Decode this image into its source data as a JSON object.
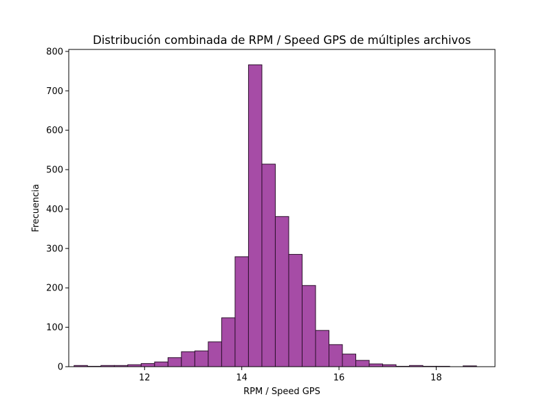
{
  "chart_data": {
    "type": "bar",
    "title": "Distribución combinada de RPM / Speed GPS de múltiples archivos",
    "xlabel": "RPM / Speed GPS",
    "ylabel": "Frecuencia",
    "xlim": [
      10.44,
      19.21
    ],
    "ylim": [
      0,
      805
    ],
    "xticks": [
      12,
      14,
      16,
      18
    ],
    "yticks": [
      0,
      100,
      200,
      300,
      400,
      500,
      600,
      700,
      800
    ],
    "bin_edges": [
      10.55,
      10.826,
      11.102,
      11.378,
      11.654,
      11.93,
      12.206,
      12.482,
      12.758,
      13.034,
      13.31,
      13.586,
      13.862,
      14.138,
      14.414,
      14.69,
      14.966,
      15.242,
      15.518,
      15.794,
      16.07,
      16.346,
      16.622,
      16.898,
      17.174,
      17.45,
      17.726,
      18.002,
      18.278,
      18.554,
      18.83
    ],
    "counts": [
      3,
      1,
      3,
      3,
      5,
      8,
      12,
      23,
      38,
      40,
      63,
      124,
      279,
      766,
      514,
      381,
      285,
      206,
      92,
      56,
      32,
      16,
      7,
      5,
      1,
      3,
      1,
      1,
      0,
      2
    ],
    "bar_color": "#a64ca6",
    "edge_color": "#2a0f2a",
    "grid": false,
    "legend": "none"
  }
}
